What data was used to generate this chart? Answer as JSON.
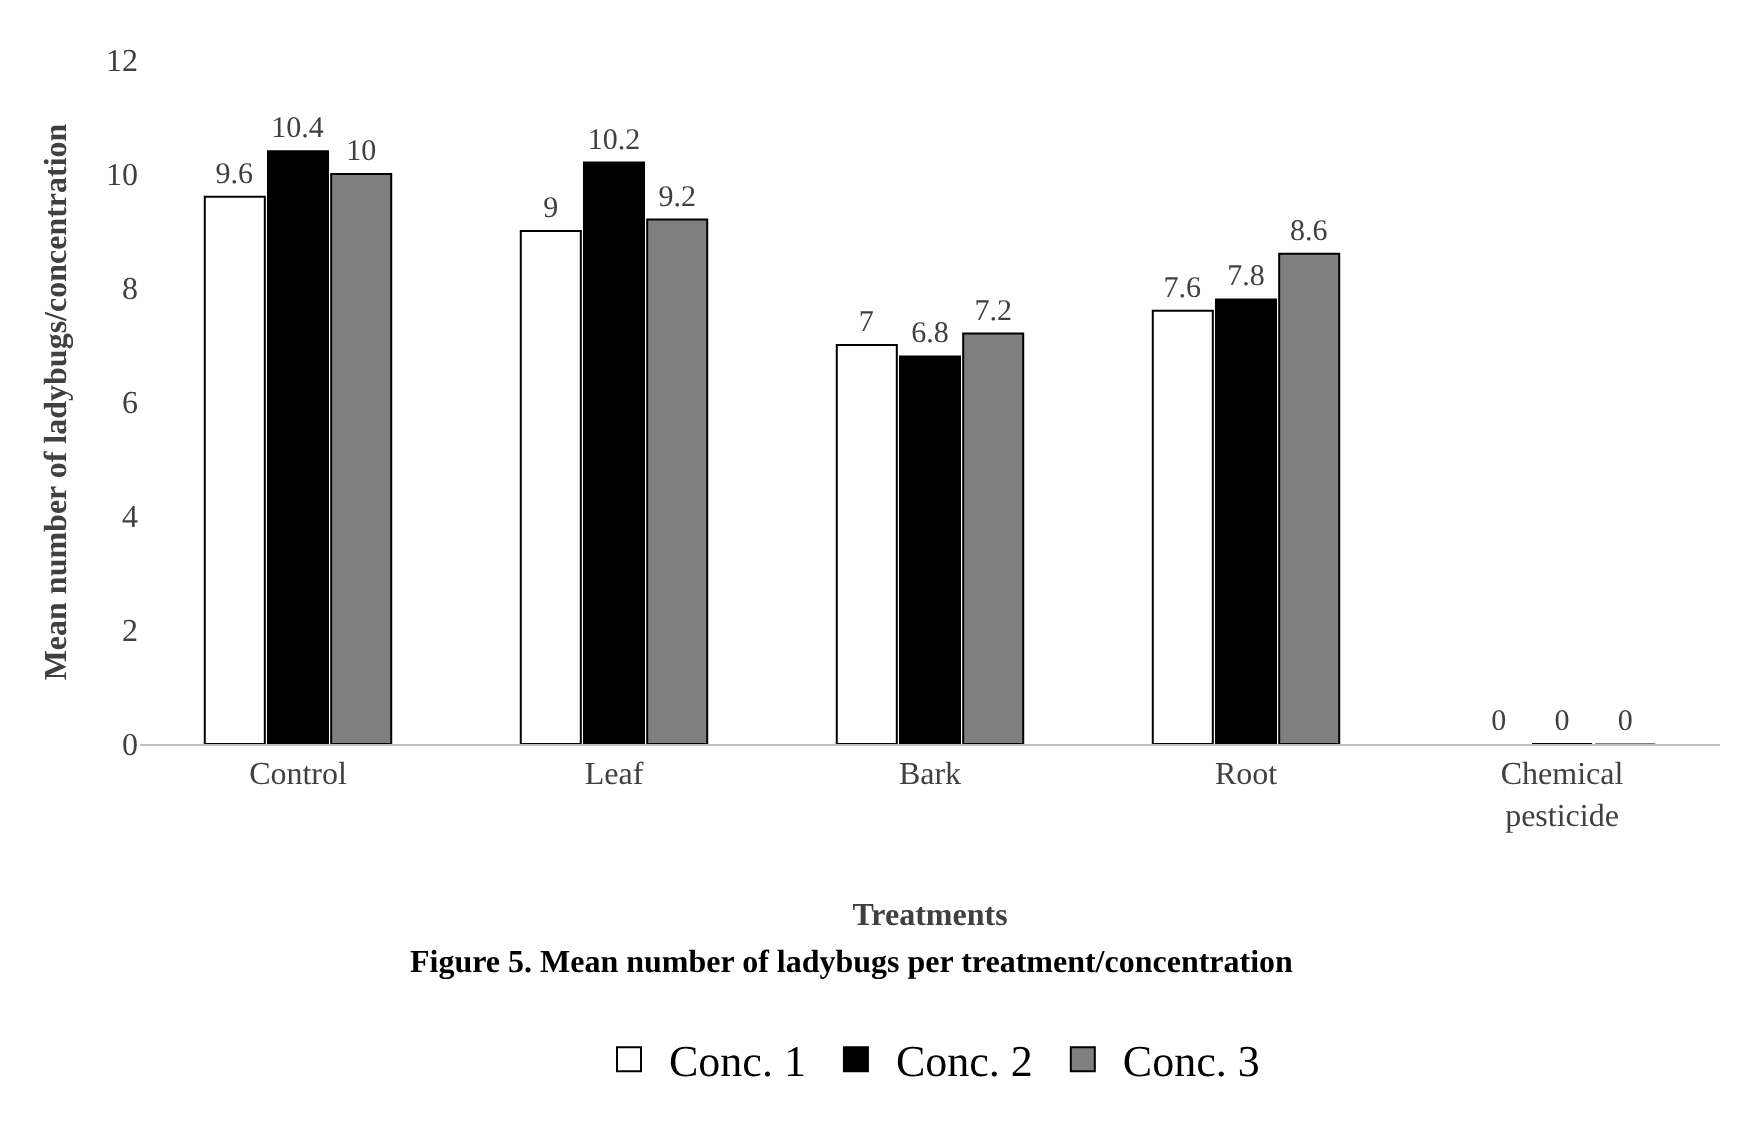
{
  "chart_data": {
    "type": "bar",
    "xlabel": "Treatments",
    "ylabel": "Mean number of ladybugs/concentration",
    "categories": [
      "Control",
      "Leaf",
      "Bark",
      "Root",
      "Chemical pesticide"
    ],
    "series": [
      {
        "name": "Conc. 1",
        "color": "#ffffff",
        "values": [
          9.6,
          9,
          7,
          7.6,
          0
        ]
      },
      {
        "name": "Conc. 2",
        "color": "#000000",
        "values": [
          10.4,
          10.2,
          6.8,
          7.8,
          0
        ]
      },
      {
        "name": "Conc. 3",
        "color": "#7f7f7f",
        "values": [
          10,
          9.2,
          7.2,
          8.6,
          0
        ]
      }
    ],
    "ylim": [
      0,
      12
    ],
    "yticks": [
      0,
      2,
      4,
      6,
      8,
      10,
      12
    ],
    "legend": "bottom",
    "data_labels": true,
    "annotations": [
      "Figure 5. Mean number of ladybugs per treatment/concentration"
    ]
  }
}
